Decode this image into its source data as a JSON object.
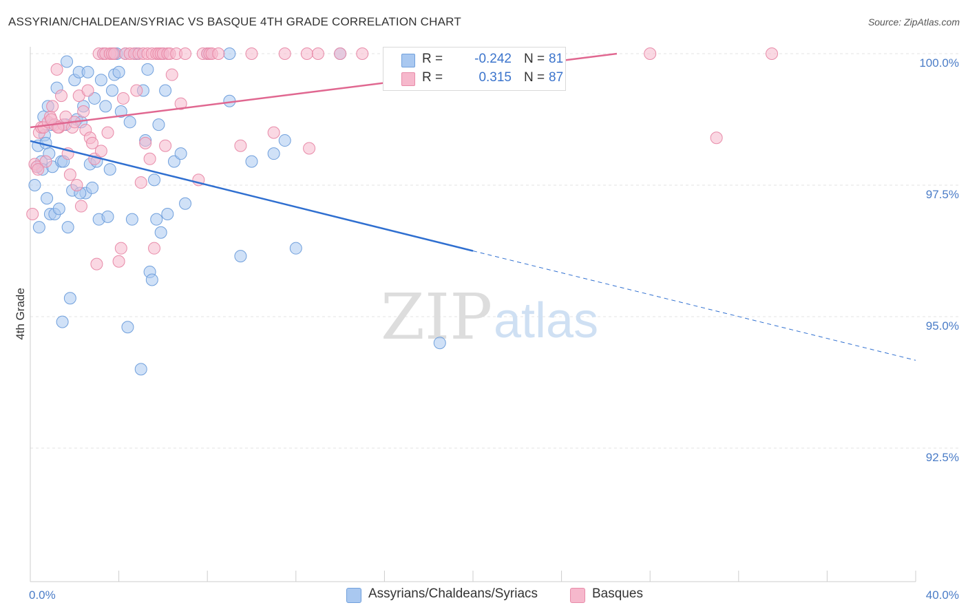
{
  "title": "ASSYRIAN/CHALDEAN/SYRIAC VS BASQUE 4TH GRADE CORRELATION CHART",
  "source": "Source: ZipAtlas.com",
  "watermark": {
    "zip": "ZIP",
    "atlas": "atlas"
  },
  "legend": {
    "rows": [
      {
        "r_label": "R =",
        "r_value": "-0.242",
        "n_label": "N =",
        "n_value": "81",
        "color": "#a9c8f0",
        "border": "#6f9fdc"
      },
      {
        "r_label": "R =",
        "r_value": "0.315",
        "n_label": "N =",
        "n_value": "87",
        "color": "#f6b8cc",
        "border": "#e88aa8"
      }
    ]
  },
  "bottom_legend": [
    {
      "label": "Assyrians/Chaldeans/Syriacs",
      "color": "#a9c8f0",
      "border": "#6f9fdc"
    },
    {
      "label": "Basques",
      "color": "#f6b8cc",
      "border": "#e88aa8"
    }
  ],
  "chart_data": {
    "type": "scatter",
    "title": "ASSYRIAN/CHALDEAN/SYRIAC VS BASQUE 4TH GRADE CORRELATION CHART",
    "xlabel": "",
    "ylabel": "4th Grade",
    "xlim": [
      0,
      40
    ],
    "ylim": [
      90.7,
      100.4
    ],
    "x_tick_labels": [
      "0.0%",
      "40.0%"
    ],
    "y_ticks": [
      92.5,
      95.0,
      97.5,
      100.0
    ],
    "y_tick_labels": [
      "92.5%",
      "95.0%",
      "97.5%",
      "100.0%"
    ],
    "grid": "horizontal dashed",
    "legend_position": "top-center",
    "series": [
      {
        "name": "Assyrians/Chaldeans/Syriacs",
        "color": "#6f9fdc",
        "fill": "#a9c8f0",
        "trend": {
          "x0": 0.0,
          "y0": 98.34,
          "x1": 20.0,
          "y1": 96.25,
          "dashed_to_x": 40.0,
          "dashed_to_y": 94.17
        },
        "points": [
          [
            0.2,
            97.5
          ],
          [
            0.3,
            97.85
          ],
          [
            0.35,
            98.25
          ],
          [
            0.4,
            96.7
          ],
          [
            0.5,
            97.95
          ],
          [
            0.55,
            97.8
          ],
          [
            0.6,
            98.8
          ],
          [
            0.65,
            98.45
          ],
          [
            0.7,
            98.3
          ],
          [
            0.75,
            97.25
          ],
          [
            0.8,
            99.0
          ],
          [
            0.85,
            98.1
          ],
          [
            0.9,
            96.95
          ],
          [
            0.95,
            98.65
          ],
          [
            1.0,
            97.85
          ],
          [
            1.1,
            96.95
          ],
          [
            1.2,
            99.35
          ],
          [
            1.3,
            97.05
          ],
          [
            1.4,
            97.95
          ],
          [
            1.5,
            97.95
          ],
          [
            1.6,
            98.65
          ],
          [
            1.65,
            99.85
          ],
          [
            1.7,
            96.7
          ],
          [
            1.8,
            95.35
          ],
          [
            1.9,
            97.4
          ],
          [
            2.0,
            99.5
          ],
          [
            2.1,
            98.75
          ],
          [
            2.2,
            99.65
          ],
          [
            2.3,
            98.7
          ],
          [
            2.4,
            99.0
          ],
          [
            2.5,
            97.35
          ],
          [
            2.6,
            99.65
          ],
          [
            2.7,
            97.9
          ],
          [
            2.8,
            97.45
          ],
          [
            2.9,
            99.15
          ],
          [
            3.0,
            97.95
          ],
          [
            3.1,
            96.85
          ],
          [
            3.2,
            99.5
          ],
          [
            3.3,
            100.0
          ],
          [
            3.4,
            99.0
          ],
          [
            3.5,
            96.9
          ],
          [
            3.6,
            97.8
          ],
          [
            3.7,
            99.3
          ],
          [
            3.8,
            99.6
          ],
          [
            3.9,
            100.0
          ],
          [
            4.0,
            99.65
          ],
          [
            4.1,
            98.9
          ],
          [
            4.3,
            100.0
          ],
          [
            4.4,
            94.8
          ],
          [
            4.5,
            98.7
          ],
          [
            4.6,
            96.85
          ],
          [
            4.8,
            100.0
          ],
          [
            5.0,
            94.0
          ],
          [
            5.1,
            99.3
          ],
          [
            5.2,
            98.35
          ],
          [
            5.3,
            99.7
          ],
          [
            5.4,
            95.85
          ],
          [
            5.5,
            95.7
          ],
          [
            5.6,
            97.6
          ],
          [
            5.7,
            96.85
          ],
          [
            5.8,
            98.65
          ],
          [
            5.9,
            96.6
          ],
          [
            6.0,
            100.0
          ],
          [
            6.1,
            99.3
          ],
          [
            6.2,
            96.95
          ],
          [
            6.5,
            97.95
          ],
          [
            7.0,
            97.15
          ],
          [
            8.0,
            100.0
          ],
          [
            9.0,
            100.0
          ],
          [
            9.5,
            96.15
          ],
          [
            10.0,
            97.95
          ],
          [
            11.0,
            98.1
          ],
          [
            11.5,
            98.35
          ],
          [
            12.0,
            96.3
          ],
          [
            14.0,
            100.0
          ],
          [
            18.5,
            94.5
          ],
          [
            1.45,
            94.9
          ],
          [
            2.25,
            97.35
          ],
          [
            3.75,
            100.0
          ],
          [
            6.8,
            98.1
          ],
          [
            9.0,
            99.1
          ]
        ]
      },
      {
        "name": "Basques",
        "color": "#e88aa8",
        "fill": "#f6b8cc",
        "trend": {
          "x0": 0.0,
          "y0": 98.6,
          "x1": 26.5,
          "y1": 100.0
        },
        "points": [
          [
            0.1,
            96.95
          ],
          [
            0.2,
            97.9
          ],
          [
            0.3,
            97.85
          ],
          [
            0.4,
            98.5
          ],
          [
            0.5,
            98.6
          ],
          [
            0.6,
            98.6
          ],
          [
            0.7,
            97.95
          ],
          [
            0.8,
            98.7
          ],
          [
            0.9,
            98.8
          ],
          [
            1.0,
            99.0
          ],
          [
            1.1,
            98.65
          ],
          [
            1.2,
            99.7
          ],
          [
            1.3,
            98.6
          ],
          [
            1.4,
            99.2
          ],
          [
            1.5,
            98.65
          ],
          [
            1.6,
            98.8
          ],
          [
            1.7,
            98.1
          ],
          [
            1.8,
            97.7
          ],
          [
            1.9,
            98.6
          ],
          [
            2.0,
            98.7
          ],
          [
            2.1,
            97.5
          ],
          [
            2.2,
            99.2
          ],
          [
            2.3,
            97.1
          ],
          [
            2.4,
            98.9
          ],
          [
            2.5,
            98.55
          ],
          [
            2.6,
            99.3
          ],
          [
            2.7,
            98.4
          ],
          [
            2.8,
            98.3
          ],
          [
            2.9,
            98.0
          ],
          [
            3.0,
            96.0
          ],
          [
            3.1,
            100.0
          ],
          [
            3.2,
            98.15
          ],
          [
            3.3,
            100.0
          ],
          [
            3.4,
            100.0
          ],
          [
            3.5,
            98.5
          ],
          [
            3.6,
            100.0
          ],
          [
            3.7,
            100.0
          ],
          [
            3.8,
            100.0
          ],
          [
            4.0,
            96.05
          ],
          [
            4.1,
            96.3
          ],
          [
            4.2,
            99.15
          ],
          [
            4.3,
            100.0
          ],
          [
            4.5,
            100.0
          ],
          [
            4.7,
            100.0
          ],
          [
            4.8,
            99.3
          ],
          [
            4.9,
            100.0
          ],
          [
            5.0,
            97.55
          ],
          [
            5.1,
            100.0
          ],
          [
            5.2,
            98.3
          ],
          [
            5.3,
            100.0
          ],
          [
            5.4,
            98.0
          ],
          [
            5.5,
            100.0
          ],
          [
            5.6,
            96.3
          ],
          [
            5.7,
            100.0
          ],
          [
            5.8,
            100.0
          ],
          [
            5.9,
            100.0
          ],
          [
            6.0,
            100.0
          ],
          [
            6.1,
            98.25
          ],
          [
            6.2,
            100.0
          ],
          [
            6.3,
            100.0
          ],
          [
            6.4,
            99.6
          ],
          [
            6.6,
            100.0
          ],
          [
            6.8,
            99.05
          ],
          [
            7.0,
            100.0
          ],
          [
            7.6,
            97.6
          ],
          [
            7.8,
            100.0
          ],
          [
            8.0,
            100.0
          ],
          [
            8.1,
            100.0
          ],
          [
            8.2,
            100.0
          ],
          [
            8.5,
            100.0
          ],
          [
            9.5,
            98.25
          ],
          [
            10.0,
            100.0
          ],
          [
            11.0,
            98.5
          ],
          [
            11.5,
            100.0
          ],
          [
            12.5,
            100.0
          ],
          [
            12.6,
            98.2
          ],
          [
            13.0,
            100.0
          ],
          [
            14.0,
            100.0
          ],
          [
            15.0,
            100.0
          ],
          [
            17.0,
            100.0
          ],
          [
            20.0,
            100.0
          ],
          [
            28.0,
            100.0
          ],
          [
            31.0,
            98.4
          ],
          [
            33.5,
            100.0
          ],
          [
            0.35,
            97.8
          ],
          [
            1.25,
            98.6
          ],
          [
            0.95,
            98.75
          ]
        ]
      }
    ]
  }
}
